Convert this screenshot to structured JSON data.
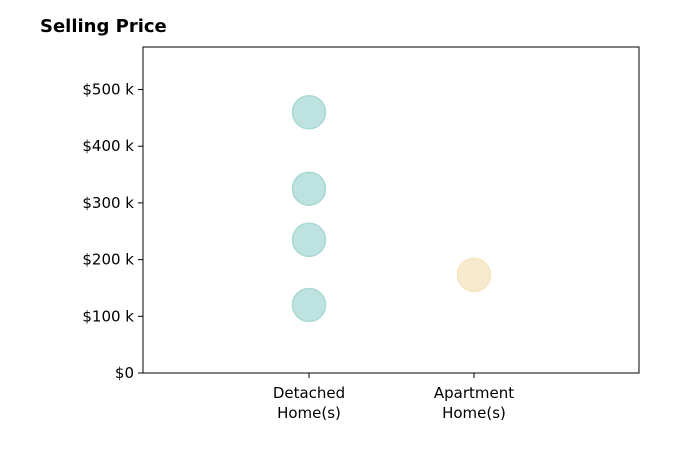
{
  "chart_data": {
    "type": "scatter",
    "title": "Selling Price",
    "xlabel": "",
    "ylabel": "",
    "categories": [
      [
        "Detached",
        "Home(s)"
      ],
      [
        "Apartment",
        "Home(s)"
      ]
    ],
    "ylim": [
      0,
      575000
    ],
    "yticks": [
      {
        "value": 0,
        "label": "$0"
      },
      {
        "value": 100000,
        "label": "$100 k"
      },
      {
        "value": 200000,
        "label": "$200 k"
      },
      {
        "value": 300000,
        "label": "$300 k"
      },
      {
        "value": 400000,
        "label": "$400 k"
      },
      {
        "value": 500000,
        "label": "$500 k"
      }
    ],
    "points": [
      {
        "category": 0,
        "value": 460000,
        "color": "#a8d8d4"
      },
      {
        "category": 0,
        "value": 325000,
        "color": "#a8d8d4"
      },
      {
        "category": 0,
        "value": 235000,
        "color": "#a8d8d4"
      },
      {
        "category": 0,
        "value": 120000,
        "color": "#a8d8d4"
      },
      {
        "category": 1,
        "value": 173000,
        "color": "#f6e3bf"
      }
    ],
    "grid": false,
    "legend": "none"
  }
}
